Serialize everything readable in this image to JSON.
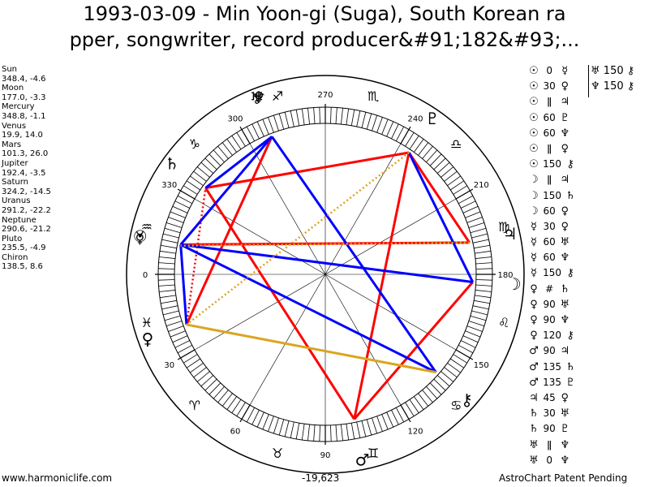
{
  "title_line1": "1993-03-09 - Min Yoon-gi (Suga), South Korean ra",
  "title_line2": "pper, songwriter, record producer&#91;182&#93;...",
  "planets": [
    {
      "name": "Sun",
      "value": "348.4, -4.6"
    },
    {
      "name": "Moon",
      "value": "177.0, -3.3"
    },
    {
      "name": "Mercury",
      "value": "348.8, -1.1"
    },
    {
      "name": "Venus",
      "value": "19.9, 14.0"
    },
    {
      "name": "Mars",
      "value": "101.3, 26.0"
    },
    {
      "name": "Jupiter",
      "value": "192.4, -3.5"
    },
    {
      "name": "Saturn",
      "value": "324.2, -14.5"
    },
    {
      "name": "Uranus",
      "value": "291.2, -22.2"
    },
    {
      "name": "Neptune",
      "value": "290.6, -21.2"
    },
    {
      "name": "Pluto",
      "value": "235.5, -4.9"
    },
    {
      "name": "Chiron",
      "value": "138.5, 8.6"
    }
  ],
  "degree_labels": [
    "0",
    "30",
    "60",
    "90",
    "120",
    "150",
    "180",
    "210",
    "240",
    "270",
    "300",
    "330"
  ],
  "zodiac_glyphs": [
    "♓",
    "♈",
    "♉",
    "♊",
    "♋",
    "♌",
    "♍",
    "♎",
    "♏",
    "♐",
    "♑",
    "♒"
  ],
  "planet_glyphs": [
    {
      "glyph": "☉",
      "lon": 348.4,
      "color": "#000000"
    },
    {
      "glyph": "☽",
      "lon": 177.0,
      "color": "#000000"
    },
    {
      "glyph": "☿",
      "lon": 348.8,
      "color": "#000000"
    },
    {
      "glyph": "♀",
      "lon": 19.9,
      "color": "#000000"
    },
    {
      "glyph": "♂",
      "lon": 101.3,
      "color": "#000000"
    },
    {
      "glyph": "♃",
      "lon": 192.4,
      "color": "#000000"
    },
    {
      "glyph": "♄",
      "lon": 324.2,
      "color": "#000000"
    },
    {
      "glyph": "♅",
      "lon": 291.2,
      "color": "#000000"
    },
    {
      "glyph": "♆",
      "lon": 290.6,
      "color": "#000000"
    },
    {
      "glyph": "♇",
      "lon": 235.5,
      "color": "#000000"
    },
    {
      "glyph": "⚷",
      "lon": 138.5,
      "color": "#000000"
    }
  ],
  "aspect_lines": [
    {
      "from": "Mars",
      "to": "Moon",
      "color": "#ff0000",
      "style": "solid"
    },
    {
      "from": "Mars",
      "to": "Saturn",
      "color": "#ff0000",
      "style": "solid"
    },
    {
      "from": "Mars",
      "to": "Pluto",
      "color": "#ff0000",
      "style": "solid"
    },
    {
      "from": "Jupiter",
      "to": "Pluto",
      "color": "#ff0000",
      "style": "solid"
    },
    {
      "from": "Jupiter",
      "to": "Sun",
      "color": "#ff0000",
      "style": "solid"
    },
    {
      "from": "Pluto",
      "to": "Saturn",
      "color": "#ff0000",
      "style": "solid"
    },
    {
      "from": "Venus",
      "to": "Uranus",
      "color": "#ff0000",
      "style": "solid"
    },
    {
      "from": "Venus",
      "to": "Saturn",
      "color": "#ff0000",
      "style": "dotted"
    },
    {
      "from": "Chiron",
      "to": "Sun",
      "color": "#0000ff",
      "style": "solid"
    },
    {
      "from": "Chiron",
      "to": "Uranus",
      "color": "#0000ff",
      "style": "solid"
    },
    {
      "from": "Moon",
      "to": "Sun",
      "color": "#0000ff",
      "style": "solid"
    },
    {
      "from": "Moon",
      "to": "Pluto",
      "color": "#0000ff",
      "style": "solid"
    },
    {
      "from": "Uranus",
      "to": "Sun",
      "color": "#0000ff",
      "style": "solid"
    },
    {
      "from": "Uranus",
      "to": "Saturn",
      "color": "#0000ff",
      "style": "solid"
    },
    {
      "from": "Venus",
      "to": "Sun",
      "color": "#0000ff",
      "style": "solid"
    },
    {
      "from": "Venus",
      "to": "Chiron",
      "color": "#daa520",
      "style": "solid"
    },
    {
      "from": "Jupiter",
      "to": "Mercury",
      "color": "#daa520",
      "style": "dotted"
    },
    {
      "from": "Pluto",
      "to": "Venus",
      "color": "#daa520",
      "style": "dotted"
    }
  ],
  "aspect_grid_left": [
    {
      "p1": "☉",
      "asp": "0",
      "p2": "☿"
    },
    {
      "p1": "☉",
      "asp": "30",
      "p2": "♀"
    },
    {
      "p1": "☉",
      "asp": "ǁ",
      "p2": "♃"
    },
    {
      "p1": "☉",
      "asp": "60",
      "p2": "♇"
    },
    {
      "p1": "☉",
      "asp": "60",
      "p2": "♆"
    },
    {
      "p1": "☉",
      "asp": "ǁ",
      "p2": "♀"
    },
    {
      "p1": "☉",
      "asp": "150",
      "p2": "⚷"
    },
    {
      "p1": "☽",
      "asp": "ǁ",
      "p2": "♃"
    },
    {
      "p1": "☽",
      "asp": "150",
      "p2": "♄"
    },
    {
      "p1": "☽",
      "asp": "60",
      "p2": "♀"
    },
    {
      "p1": "☿",
      "asp": "30",
      "p2": "♀"
    },
    {
      "p1": "☿",
      "asp": "60",
      "p2": "♅"
    },
    {
      "p1": "☿",
      "asp": "60",
      "p2": "♆"
    },
    {
      "p1": "☿",
      "asp": "150",
      "p2": "⚷"
    },
    {
      "p1": "♀",
      "asp": "#",
      "p2": "♄"
    },
    {
      "p1": "♀",
      "asp": "90",
      "p2": "♅"
    },
    {
      "p1": "♀",
      "asp": "90",
      "p2": "♆"
    },
    {
      "p1": "♀",
      "asp": "120",
      "p2": "⚷"
    },
    {
      "p1": "♂",
      "asp": "90",
      "p2": "♃"
    },
    {
      "p1": "♂",
      "asp": "135",
      "p2": "♄"
    },
    {
      "p1": "♂",
      "asp": "135",
      "p2": "♇"
    },
    {
      "p1": "♃",
      "asp": "45",
      "p2": "♀"
    },
    {
      "p1": "♄",
      "asp": "30",
      "p2": "♅"
    },
    {
      "p1": "♄",
      "asp": "90",
      "p2": "♇"
    },
    {
      "p1": "♅",
      "asp": "ǁ",
      "p2": "♆"
    },
    {
      "p1": "♅",
      "asp": "0",
      "p2": "♆"
    }
  ],
  "aspect_grid_right": [
    {
      "p1": "♅",
      "asp": "150",
      "p2": "⚷"
    },
    {
      "p1": "♆",
      "asp": "150",
      "p2": "⚷"
    }
  ],
  "bottom_center_value": "-19,623",
  "footer_left": "www.harmoniclife.com",
  "footer_right": "AstroChart Patent Pending"
}
